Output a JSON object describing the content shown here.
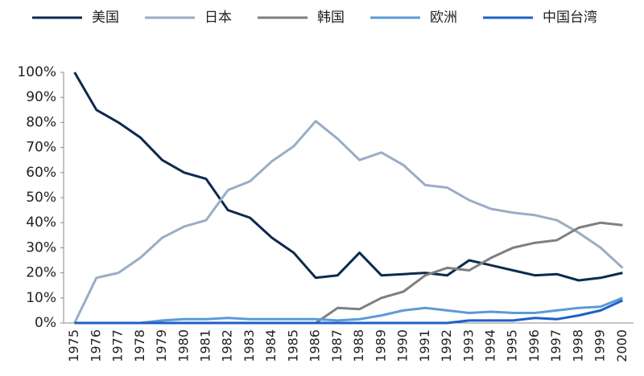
{
  "chart_data": {
    "type": "line",
    "categories": [
      "1975",
      "1976",
      "1977",
      "1978",
      "1979",
      "1980",
      "1981",
      "1982",
      "1983",
      "1984",
      "1985",
      "1986",
      "1987",
      "1988",
      "1989",
      "1990",
      "1991",
      "1992",
      "1993",
      "1994",
      "1995",
      "1996",
      "1997",
      "1998",
      "1999",
      "2000"
    ],
    "series": [
      {
        "name": "美国",
        "color": "#0d2a4e",
        "values": [
          100,
          85,
          80,
          74,
          65,
          60,
          57.5,
          45,
          42,
          34,
          28,
          18,
          19,
          28,
          19,
          19.5,
          20,
          19,
          25,
          23,
          21,
          19,
          19.5,
          17,
          18,
          20
        ]
      },
      {
        "name": "日本",
        "color": "#9aadc4",
        "values": [
          0,
          18,
          20,
          26,
          34,
          38.5,
          41,
          53,
          56.5,
          64.5,
          70.5,
          80.5,
          73.5,
          65,
          68,
          63,
          55,
          54,
          49,
          45.5,
          44,
          43,
          41,
          36,
          30,
          22
        ]
      },
      {
        "name": "韩国",
        "color": "#7f7f7f",
        "values": [
          0,
          0,
          0,
          0,
          0,
          0,
          0,
          0,
          0,
          0,
          0,
          0,
          6,
          5.5,
          10,
          12.5,
          19,
          22,
          21,
          26,
          30,
          32,
          33,
          38,
          40,
          39
        ]
      },
      {
        "name": "欧洲",
        "color": "#5b9bd5",
        "values": [
          0,
          0,
          0,
          0,
          1,
          1.5,
          1.5,
          2,
          1.5,
          1.5,
          1.5,
          1.5,
          1,
          1.5,
          3,
          5,
          6,
          5,
          4,
          4.5,
          4,
          4,
          5,
          6,
          6.5,
          10
        ]
      },
      {
        "name": "中国台湾",
        "color": "#1f5fc8",
        "values": [
          0,
          0,
          0,
          0,
          0,
          0,
          0,
          0,
          0,
          0,
          0,
          0,
          0,
          0,
          0,
          0,
          0,
          0,
          1,
          1,
          1,
          2,
          1.5,
          3,
          5,
          9
        ]
      }
    ],
    "ylim": [
      0,
      100
    ],
    "yticks": [
      {
        "value": 0,
        "label": "0%"
      },
      {
        "value": 10,
        "label": "10%"
      },
      {
        "value": 20,
        "label": "20%"
      },
      {
        "value": 30,
        "label": "30%"
      },
      {
        "value": 40,
        "label": "40%"
      },
      {
        "value": 50,
        "label": "50%"
      },
      {
        "value": 60,
        "label": "60%"
      },
      {
        "value": 70,
        "label": "70%"
      },
      {
        "value": 80,
        "label": "80%"
      },
      {
        "value": 90,
        "label": "90%"
      },
      {
        "value": 100,
        "label": "100%"
      }
    ],
    "grid": false
  }
}
